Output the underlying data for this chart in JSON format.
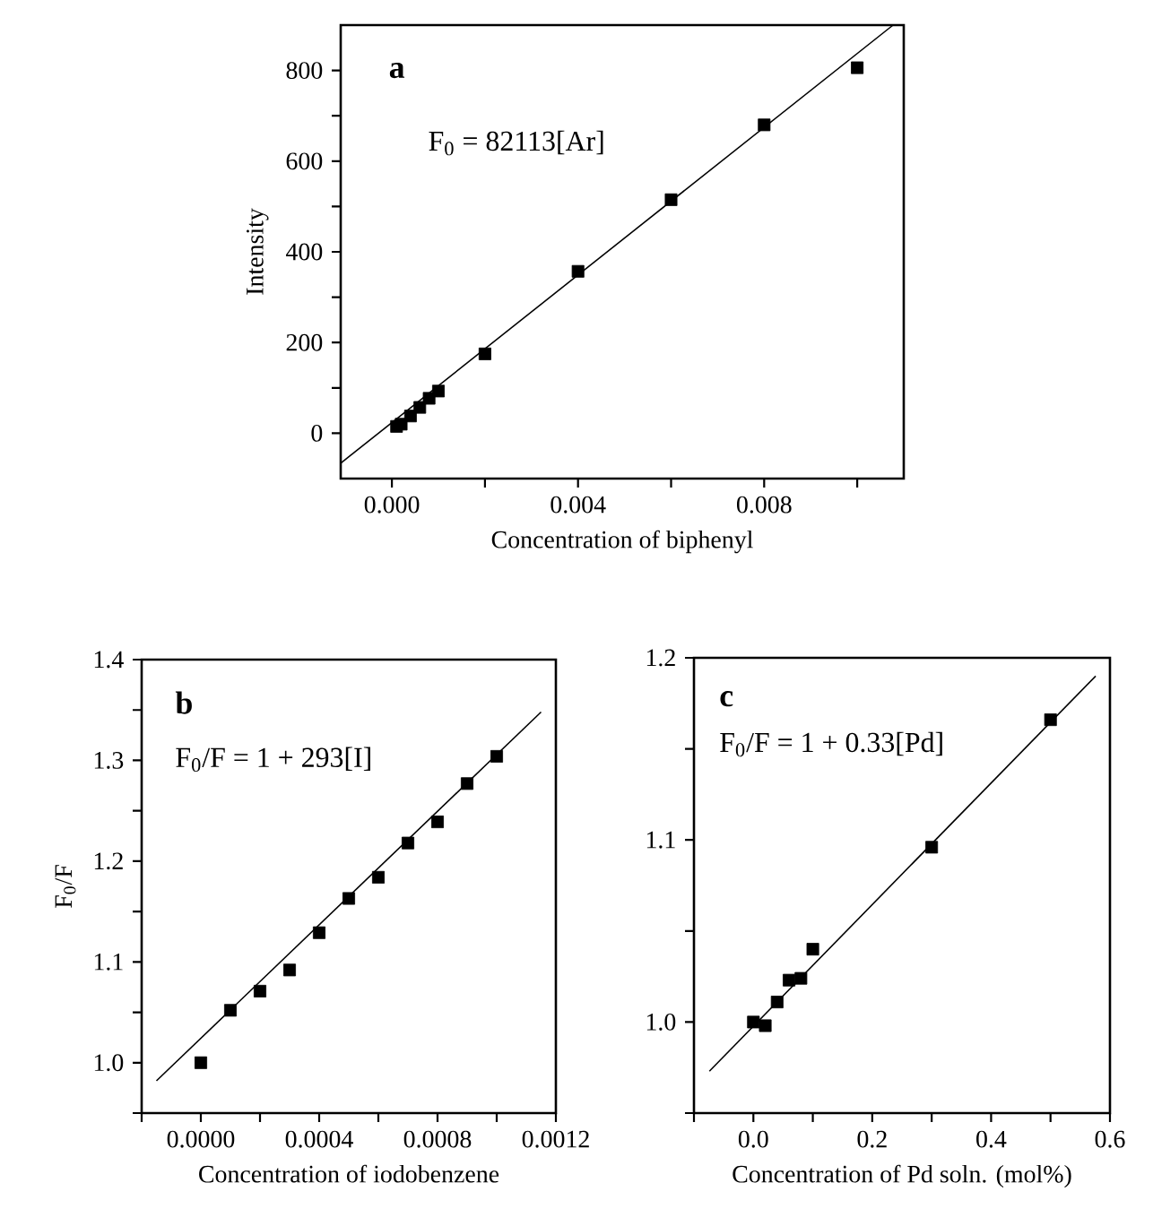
{
  "chart_data": [
    {
      "type": "scatter",
      "xlabel": "Concentration of biphenyl",
      "ylabel": "Intensity",
      "annotations": [
        "a",
        "F$_{0}$ = 82113[Ar]"
      ],
      "xlim": [
        -0.0011,
        0.011
      ],
      "ylim": [
        -100,
        900
      ],
      "line_style": "solid",
      "xticks": [
        {
          "value": 0,
          "label": "0.000"
        },
        {
          "value": 0.002,
          "label": null
        },
        {
          "value": 0.004,
          "label": "0.004"
        },
        {
          "value": 0.006,
          "label": null
        },
        {
          "value": 0.008,
          "label": "0.008"
        },
        {
          "value": 0.01,
          "label": null
        }
      ],
      "yticks": [
        0,
        {
          "value": 100,
          "label": null
        },
        200,
        {
          "value": 300,
          "label": null
        },
        400,
        {
          "value": 500,
          "label": null
        },
        600,
        {
          "value": 700,
          "label": null
        },
        800
      ],
      "series": [
        {
          "marker": "square",
          "color": "#000000",
          "x": [
            0.0001,
            0.0002,
            0.0004,
            0.0006,
            0.0008,
            0.001,
            0.002,
            0.004,
            0.006,
            0.008,
            0.01
          ],
          "values": [
            15,
            20,
            38,
            57,
            77,
            93,
            175,
            357,
            515,
            680,
            806
          ]
        },
        {
          "type": "line",
          "marker": "none",
          "color": "#000000",
          "x": [
            -0.0011,
            0.01077
          ],
          "values": [
            -66,
            900
          ]
        }
      ]
    },
    {
      "type": "scatter",
      "xlabel": "Concentration of iodobenzene",
      "ylabel": "F$_{0}$/F",
      "annotations": [
        "b",
        "F$_{0}$/F = 1 + 293[I]"
      ],
      "xlim": [
        -0.0002,
        0.0012
      ],
      "ylim": [
        0.95,
        1.4
      ],
      "line_style": "solid",
      "xticks": [
        {
          "value": -0.0002,
          "label": null
        },
        {
          "value": 0,
          "label": "0.0000"
        },
        {
          "value": 0.0002,
          "label": null
        },
        {
          "value": 0.0004,
          "label": "0.0004"
        },
        {
          "value": 0.0006,
          "label": null
        },
        {
          "value": 0.0008,
          "label": "0.0008"
        },
        {
          "value": 0.001,
          "label": null
        },
        {
          "value": 0.0012,
          "label": "0.0012"
        }
      ],
      "yticks": [
        {
          "value": 0.95,
          "label": null
        },
        {
          "value": 1.0,
          "label": "1.0"
        },
        {
          "value": 1.05,
          "label": null
        },
        1.1,
        {
          "value": 1.15,
          "label": null
        },
        1.2,
        {
          "value": 1.25,
          "label": null
        },
        1.3,
        {
          "value": 1.35,
          "label": null
        },
        1.4
      ],
      "series": [
        {
          "marker": "square",
          "color": "#000000",
          "x": [
            0,
            0.0001,
            0.0002,
            0.0003,
            0.0004,
            0.0005,
            0.0006,
            0.0007,
            0.0008,
            0.0009,
            0.001
          ],
          "values": [
            1.0,
            1.052,
            1.071,
            1.092,
            1.129,
            1.163,
            1.184,
            1.218,
            1.239,
            1.277,
            1.304
          ]
        },
        {
          "type": "line",
          "marker": "none",
          "color": "#000000",
          "x": [
            -0.00015,
            0.00115
          ],
          "values": [
            0.982,
            1.348
          ]
        }
      ]
    },
    {
      "type": "scatter",
      "xlabel": "Concentration of Pd soln. (mol%)",
      "annotations": [
        "c",
        "F$_{0}$/F = 1 + 0.33[Pd]"
      ],
      "xlim": [
        -0.1,
        0.6
      ],
      "ylim": [
        0.95,
        1.2
      ],
      "line_style": "solid",
      "xticks": [
        {
          "value": -0.1,
          "label": null
        },
        {
          "value": 0,
          "label": "0.0"
        },
        {
          "value": 0.1,
          "label": null
        },
        0.2,
        {
          "value": 0.3,
          "label": null
        },
        0.4,
        {
          "value": 0.5,
          "label": null
        },
        0.6
      ],
      "yticks": [
        {
          "value": 0.95,
          "label": null
        },
        {
          "value": 1.0,
          "label": "1.0"
        },
        {
          "value": 1.05,
          "label": null
        },
        1.1,
        {
          "value": 1.15,
          "label": null
        },
        1.2
      ],
      "series": [
        {
          "marker": "square",
          "color": "#000000",
          "x": [
            0,
            0.02,
            0.04,
            0.06,
            0.08,
            0.1,
            0.3,
            0.5
          ],
          "values": [
            1.0,
            0.998,
            1.011,
            1.023,
            1.024,
            1.04,
            1.096,
            1.166
          ]
        },
        {
          "type": "line",
          "marker": "none",
          "color": "#000000",
          "x": [
            -0.074,
            0.576
          ],
          "values": [
            0.973,
            1.19
          ]
        }
      ]
    }
  ]
}
